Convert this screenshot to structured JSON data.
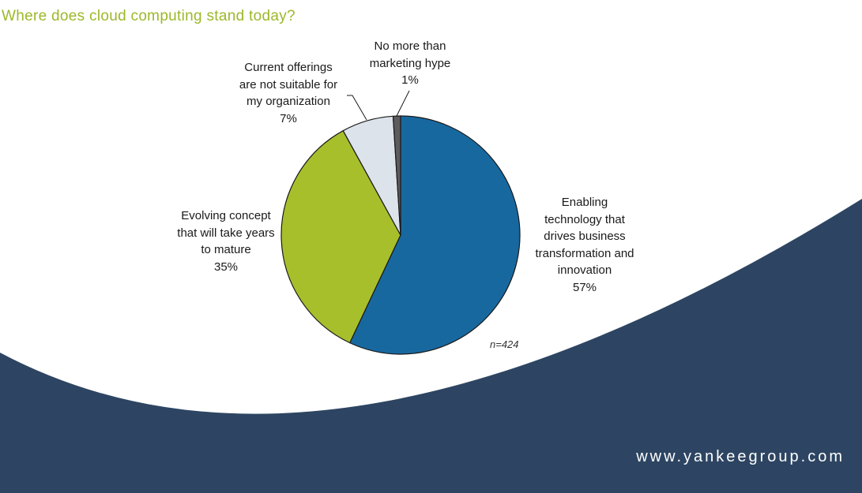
{
  "chart_data": {
    "type": "pie",
    "title": "Where does cloud computing stand today?",
    "note": "n=424",
    "slices": [
      {
        "label": [
          "Enabling",
          "technology that",
          "drives business",
          "transformation and",
          "innovation"
        ],
        "value": 57,
        "value_label": "57%",
        "color": "#1868a0"
      },
      {
        "label": [
          "Evolving concept",
          "that will take years",
          "to mature"
        ],
        "value": 35,
        "value_label": "35%",
        "color": "#a8bf2c"
      },
      {
        "label": [
          "Current offerings",
          "are not suitable for",
          "my organization"
        ],
        "value": 7,
        "value_label": "7%",
        "color": "#dde3ea"
      },
      {
        "label": [
          "No more than",
          "marketing hype"
        ],
        "value": 1,
        "value_label": "1%",
        "color": "#5c5c5c"
      }
    ]
  },
  "footer": {
    "website": "www.yankeegroup.com"
  },
  "colors": {
    "title": "#9cb82a",
    "background_swoosh": "#2d4562",
    "outline": "#1a1a1a"
  }
}
